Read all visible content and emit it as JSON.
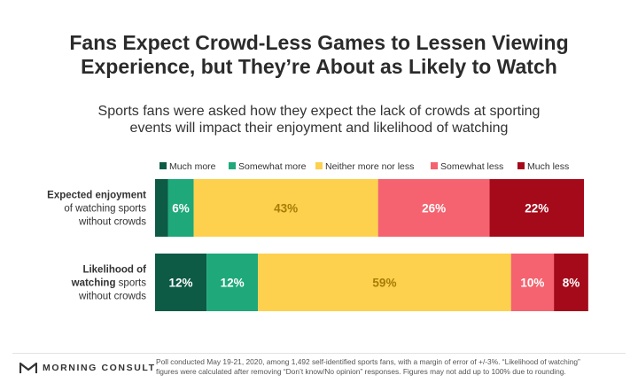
{
  "title_lines": [
    "Fans Expect Crowd-Less Games to Lessen Viewing",
    "Experience, but They’re About as Likely to Watch"
  ],
  "subtitle_lines": [
    "Sports fans were asked how they expect the lack of crowds at sporting",
    "events will impact their enjoyment and likelihood of watching"
  ],
  "chart_data": {
    "type": "bar",
    "orientation": "horizontal",
    "stacked": true,
    "normalized_to": 100,
    "legend_position": "top",
    "categories": [
      "Expected enjoyment of watching sports without crowds",
      "Likelihood of watching sports without crowds"
    ],
    "category_label_lines": [
      [
        [
          {
            "t": "Expected enjoyment",
            "b": true
          }
        ],
        [
          {
            "t": "of watching sports",
            "b": false
          }
        ],
        [
          {
            "t": "without crowds",
            "b": false
          }
        ]
      ],
      [
        [
          {
            "t": "Likelihood of",
            "b": true
          }
        ],
        [
          {
            "t": "watching",
            "b": true
          },
          {
            "t": " sports",
            "b": false
          }
        ],
        [
          {
            "t": "without crowds",
            "b": false
          }
        ]
      ]
    ],
    "series": [
      {
        "name": "Much more",
        "color": "#0d5a45",
        "values": [
          3,
          12
        ],
        "labels": [
          "",
          "12%"
        ],
        "label_color": "#ffffff"
      },
      {
        "name": "Somewhat more",
        "color": "#1fa87a",
        "values": [
          6,
          12
        ],
        "labels": [
          "6%",
          "12%"
        ],
        "label_color": "#ffffff"
      },
      {
        "name": "Neither more nor less",
        "color": "#fdd04d",
        "values": [
          43,
          59
        ],
        "labels": [
          "43%",
          "59%"
        ],
        "label_color": "#a57c06"
      },
      {
        "name": "Somewhat less",
        "color": "#f4636f",
        "values": [
          26,
          10
        ],
        "labels": [
          "26%",
          "10%"
        ],
        "label_color": "#ffffff"
      },
      {
        "name": "Much less",
        "color": "#a50a1a",
        "values": [
          22,
          8
        ],
        "labels": [
          "22%",
          "8%"
        ],
        "label_color": "#ffffff"
      }
    ]
  },
  "footer": {
    "logo_text": "MORNING CONSULT",
    "logo_icon": "morning-consult-logo-icon",
    "note_lines": [
      "Poll conducted May 19-21, 2020, among 1,492 self-identified sports fans, with a margin of error of +/-3%. “Likelihood of watching”",
      "figures were calculated after removing “Don’t know/No opinion” responses. Figures may not add up to 100% due to rounding."
    ]
  }
}
